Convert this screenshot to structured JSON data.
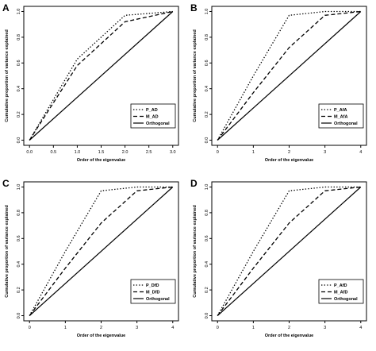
{
  "chart_data": [
    {
      "panel_label": "A",
      "type": "line",
      "xlabel": "Order of the eigenvalue",
      "ylabel": "Cumulative proportion of variance explained",
      "xlim": [
        0,
        3
      ],
      "ylim": [
        0,
        1
      ],
      "xticks": [
        "0.0",
        "0.5",
        "1.0",
        "1.5",
        "2.0",
        "2.5",
        "3.0"
      ],
      "xtick_values": [
        0,
        0.5,
        1,
        1.5,
        2,
        2.5,
        3
      ],
      "yticks": [
        "0.0",
        "0.2",
        "0.4",
        "0.6",
        "0.8",
        "1.0"
      ],
      "ytick_values": [
        0,
        0.2,
        0.4,
        0.6,
        0.8,
        1.0
      ],
      "legend_position": "bottom-right",
      "series": [
        {
          "name": "P_AD",
          "style": "dotted",
          "x": [
            0,
            1,
            2,
            3
          ],
          "y": [
            0,
            0.63,
            0.97,
            1.0
          ]
        },
        {
          "name": "M_AD",
          "style": "dashed",
          "x": [
            0,
            1,
            2,
            3
          ],
          "y": [
            0,
            0.58,
            0.92,
            1.0
          ]
        },
        {
          "name": "Orthogonal",
          "style": "solid",
          "x": [
            0,
            3
          ],
          "y": [
            0,
            1.0
          ]
        }
      ]
    },
    {
      "panel_label": "B",
      "type": "line",
      "xlabel": "Order of the eigenvalue",
      "ylabel": "Cumulative proportion of variance explained",
      "xlim": [
        0,
        4
      ],
      "ylim": [
        0,
        1
      ],
      "xticks": [
        "0",
        "1",
        "2",
        "3",
        "4"
      ],
      "xtick_values": [
        0,
        1,
        2,
        3,
        4
      ],
      "yticks": [
        "0.0",
        "0.2",
        "0.4",
        "0.6",
        "0.8",
        "1.0"
      ],
      "ytick_values": [
        0,
        0.2,
        0.4,
        0.6,
        0.8,
        1.0
      ],
      "legend_position": "bottom-right",
      "series": [
        {
          "name": "P_AfA",
          "style": "dotted",
          "x": [
            0,
            1,
            2,
            3,
            4
          ],
          "y": [
            0,
            0.5,
            0.97,
            1.0,
            1.0
          ]
        },
        {
          "name": "M_AfA",
          "style": "dashed",
          "x": [
            0,
            1,
            2,
            3,
            4
          ],
          "y": [
            0,
            0.37,
            0.72,
            0.97,
            1.0
          ]
        },
        {
          "name": "Orthogonal",
          "style": "solid",
          "x": [
            0,
            4
          ],
          "y": [
            0,
            1.0
          ]
        }
      ]
    },
    {
      "panel_label": "C",
      "type": "line",
      "xlabel": "Order of the eigenvalue",
      "ylabel": "Cumulative proportion of variance explained",
      "xlim": [
        0,
        4
      ],
      "ylim": [
        0,
        1
      ],
      "xticks": [
        "0",
        "1",
        "2",
        "3",
        "4"
      ],
      "xtick_values": [
        0,
        1,
        2,
        3,
        4
      ],
      "yticks": [
        "0.0",
        "0.2",
        "0.4",
        "0.6",
        "0.8",
        "1.0"
      ],
      "ytick_values": [
        0,
        0.2,
        0.4,
        0.6,
        0.8,
        1.0
      ],
      "legend_position": "bottom-right",
      "series": [
        {
          "name": "P_DfD",
          "style": "dotted",
          "x": [
            0,
            1,
            2,
            3,
            4
          ],
          "y": [
            0,
            0.5,
            0.97,
            1.0,
            1.0
          ]
        },
        {
          "name": "M_DfD",
          "style": "dashed",
          "x": [
            0,
            1,
            2,
            3,
            4
          ],
          "y": [
            0,
            0.37,
            0.72,
            0.97,
            1.0
          ]
        },
        {
          "name": "Orthogonal",
          "style": "solid",
          "x": [
            0,
            4
          ],
          "y": [
            0,
            1.0
          ]
        }
      ]
    },
    {
      "panel_label": "D",
      "type": "line",
      "xlabel": "Order of the eigenvalue",
      "ylabel": "Cumulative proportion of variance explained",
      "xlim": [
        0,
        4
      ],
      "ylim": [
        0,
        1
      ],
      "xticks": [
        "0",
        "1",
        "2",
        "3",
        "4"
      ],
      "xtick_values": [
        0,
        1,
        2,
        3,
        4
      ],
      "yticks": [
        "0.0",
        "0.2",
        "0.4",
        "0.6",
        "0.8",
        "1.0"
      ],
      "ytick_values": [
        0,
        0.2,
        0.4,
        0.6,
        0.8,
        1.0
      ],
      "legend_position": "bottom-right",
      "series": [
        {
          "name": "P_AfD",
          "style": "dotted",
          "x": [
            0,
            1,
            2,
            3,
            4
          ],
          "y": [
            0,
            0.5,
            0.97,
            1.0,
            1.0
          ]
        },
        {
          "name": "M_AfD",
          "style": "dashed",
          "x": [
            0,
            1,
            2,
            3,
            4
          ],
          "y": [
            0,
            0.37,
            0.72,
            0.97,
            1.0
          ]
        },
        {
          "name": "Orthogonal",
          "style": "solid",
          "x": [
            0,
            4
          ],
          "y": [
            0,
            1.0
          ]
        }
      ]
    }
  ]
}
